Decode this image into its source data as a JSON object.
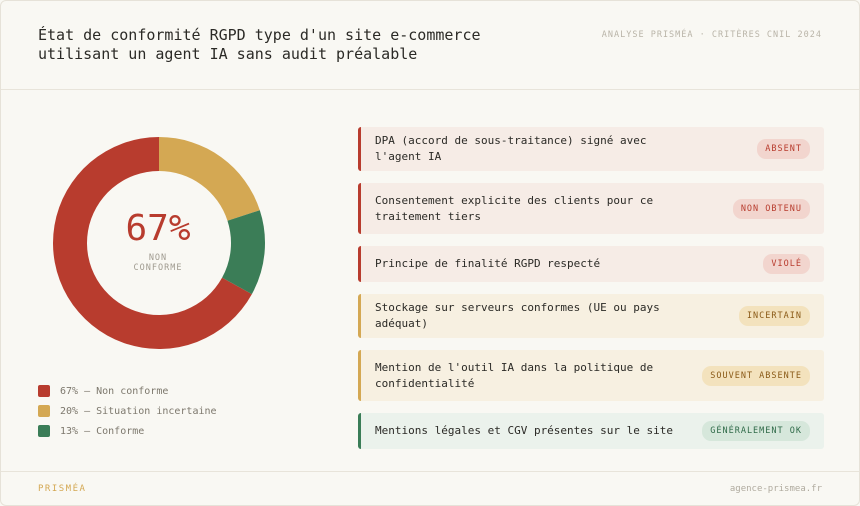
{
  "header": {
    "title": "État de conformité RGPD type d'un site e-commerce utilisant un agent IA sans audit préalable",
    "tagline": "ANALYSE PRISMÉA · CRITÈRES CNIL 2024"
  },
  "chart_data": {
    "type": "donut",
    "center_label": "67%",
    "center_sublabel": "NON CONFORME",
    "categories": [
      "67% — Non conforme",
      "20% — Situation incertaine",
      "13% — Conforme"
    ],
    "values": [
      67,
      20,
      13
    ],
    "colors": [
      "#b83c2e",
      "#d4a853",
      "#3b7d57"
    ]
  },
  "checklist": [
    {
      "label": "DPA (accord de sous-traitance) signé avec l'agent IA",
      "status": "ABSENT",
      "color": "#b83c2e"
    },
    {
      "label": "Consentement explicite des clients pour ce traitement tiers",
      "status": "NON OBTENU",
      "color": "#b83c2e"
    },
    {
      "label": "Principe de finalité RGPD respecté",
      "status": "VIOLÉ",
      "color": "#b83c2e"
    },
    {
      "label": "Stockage sur serveurs conformes (UE ou pays adéquat)",
      "status": "INCERTAIN",
      "color": "#d4a853"
    },
    {
      "label": "Mention de l'outil IA dans la politique de confidentialité",
      "status": "SOUVENT ABSENTE",
      "color": "#d4a853"
    },
    {
      "label": "Mentions légales et CGV présentes sur le site",
      "status": "GÉNÉRALEMENT OK",
      "color": "#3b7d57"
    }
  ],
  "footer": {
    "brand": "PRISMÉA",
    "url": "agence-prismea.fr"
  }
}
